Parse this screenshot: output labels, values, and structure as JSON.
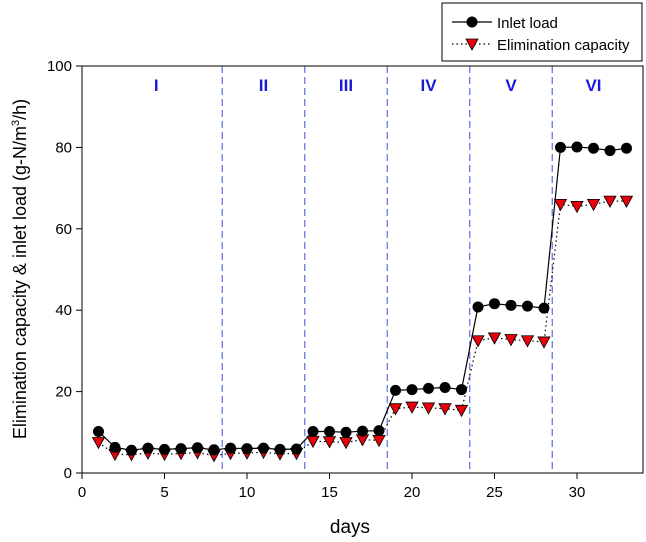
{
  "chart_data": {
    "type": "line",
    "xlabel": "days",
    "ylabel_parts": [
      "Elimination capacity & inlet load (g-N/m",
      "3",
      "/h)"
    ],
    "xlim": [
      0,
      34
    ],
    "ylim": [
      0,
      100
    ],
    "xticks": [
      0,
      5,
      10,
      15,
      20,
      25,
      30
    ],
    "yticks": [
      0,
      20,
      40,
      60,
      80,
      100
    ],
    "grid": false,
    "legend_position": "top-right",
    "phase_boundaries": [
      8.5,
      13.5,
      18.5,
      23.5,
      28.5
    ],
    "phase_labels": [
      {
        "label": "I",
        "x": 4.5
      },
      {
        "label": "II",
        "x": 11
      },
      {
        "label": "III",
        "x": 16
      },
      {
        "label": "IV",
        "x": 21
      },
      {
        "label": "V",
        "x": 26
      },
      {
        "label": "VI",
        "x": 31
      }
    ],
    "phase_color": "#1a1ad6",
    "boundary_color": "#5a6fe0",
    "x": [
      1,
      2,
      3,
      4,
      5,
      6,
      7,
      8,
      9,
      10,
      11,
      12,
      13,
      14,
      15,
      16,
      17,
      18,
      19,
      20,
      21,
      22,
      23,
      24,
      25,
      26,
      27,
      28,
      29,
      30,
      31,
      32,
      33
    ],
    "series": [
      {
        "name": "Inlet load",
        "marker": "circle",
        "line": "solid",
        "color": "#000000",
        "values": [
          10.2,
          6.3,
          5.6,
          6.1,
          5.8,
          6.0,
          6.2,
          5.7,
          6.1,
          6.0,
          6.1,
          5.8,
          5.9,
          10.2,
          10.2,
          10.0,
          10.3,
          10.4,
          20.3,
          20.5,
          20.8,
          21.0,
          20.5,
          40.8,
          41.6,
          41.2,
          41.0,
          40.5,
          80.0,
          80.1,
          79.8,
          79.2,
          79.8
        ]
      },
      {
        "name": "Elimination capacity",
        "marker": "triangle-down",
        "line": "dotted",
        "color": "#e8000a",
        "values": [
          7.5,
          4.6,
          4.5,
          4.9,
          4.6,
          4.8,
          5.0,
          4.3,
          4.8,
          4.9,
          5.1,
          4.7,
          4.8,
          7.8,
          7.7,
          7.5,
          8.2,
          8.0,
          15.8,
          16.2,
          16.0,
          15.8,
          15.4,
          32.5,
          33.2,
          32.8,
          32.5,
          32.2,
          66.0,
          65.5,
          66.0,
          66.8,
          66.8
        ]
      }
    ]
  }
}
